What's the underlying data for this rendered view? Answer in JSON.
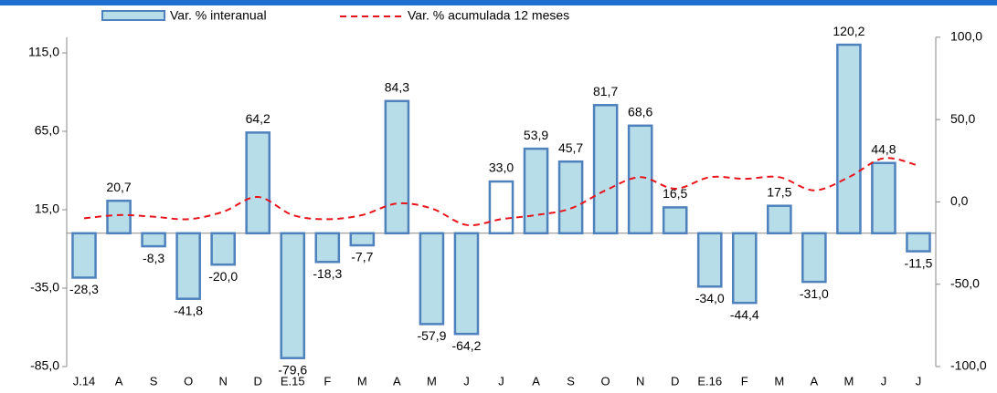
{
  "chart_data": {
    "type": "bar",
    "categories": [
      "J.14",
      "A",
      "S",
      "O",
      "N",
      "D",
      "E.15",
      "F",
      "M",
      "A",
      "M",
      "J",
      "J",
      "A",
      "S",
      "O",
      "N",
      "D",
      "E.16",
      "F",
      "M",
      "A",
      "M",
      "J",
      "J"
    ],
    "series": [
      {
        "name": "Var. % interanual",
        "color": "#4f81bd",
        "fill_colors": [
          "#b7dde8",
          "#b7dde8",
          "#b7dde8",
          "#b7dde8",
          "#b7dde8",
          "#b7dde8",
          "#b7dde8",
          "#b7dde8",
          "#b7dde8",
          "#b7dde8",
          "#b7dde8",
          "#b7dde8",
          "#ffffff",
          "#b7dde8",
          "#b7dde8",
          "#b7dde8",
          "#b7dde8",
          "#b7dde8",
          "#b7dde8",
          "#b7dde8",
          "#b7dde8",
          "#b7dde8",
          "#b7dde8",
          "#b7dde8",
          "#b7dde8"
        ],
        "values": [
          -28.3,
          20.7,
          -8.3,
          -41.8,
          -20.0,
          64.2,
          -79.6,
          -18.3,
          -7.7,
          84.3,
          -57.9,
          -64.2,
          33.0,
          53.9,
          45.7,
          81.7,
          68.6,
          16.5,
          -34.0,
          -44.4,
          17.5,
          -31.0,
          120.2,
          44.8,
          -11.5
        ],
        "value_labels": [
          "-28,3",
          "20,7",
          "-8,3",
          "-41,8",
          "-20,0",
          "64,2",
          "-79,6",
          "-18,3",
          "-7,7",
          "84,3",
          "-57,9",
          "-64,2",
          "33,0",
          "53,9",
          "45,7",
          "81,7",
          "68,6",
          "16,5",
          "-34,0",
          "-44,4",
          "17,5",
          "-31,0",
          "120,2",
          "44,8",
          "-11,5"
        ]
      },
      {
        "name": "Var. % acumulada 12 meses",
        "color": "#e8141b",
        "type": "line",
        "axis": "y2",
        "values": [
          -10,
          -8,
          -9,
          -10.5,
          -6,
          3,
          -8,
          -10.5,
          -8,
          -1,
          -4,
          -14,
          -10.5,
          -8,
          -4,
          7,
          15,
          8,
          15,
          14,
          15,
          7,
          15,
          26.5,
          22
        ]
      }
    ],
    "ylim": [
      -85,
      125
    ],
    "yticks": [
      {
        "value": -85,
        "label": "-85,0"
      },
      {
        "value": -35,
        "label": "-35,0"
      },
      {
        "value": 15,
        "label": "15,0"
      },
      {
        "value": 65,
        "label": "65,0"
      },
      {
        "value": 115,
        "label": "115,0"
      }
    ],
    "y2lim": [
      -100,
      100
    ],
    "y2ticks": [
      {
        "value": -100,
        "label": "-100,0"
      },
      {
        "value": -50,
        "label": "-50,0"
      },
      {
        "value": 0,
        "label": "0,0"
      },
      {
        "value": 50,
        "label": "50,0"
      },
      {
        "value": 100,
        "label": "100,0"
      }
    ]
  }
}
